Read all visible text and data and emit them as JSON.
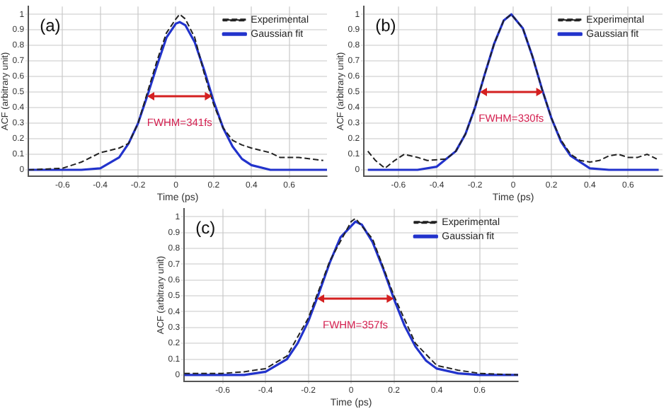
{
  "chart_data": [
    {
      "type": "line",
      "xlabel": "Time (ps)",
      "ylabel": "ACF (arbitrary unit)",
      "annotations": [
        "(a)",
        "FWHM=341fs"
      ],
      "xlim": [
        -0.78,
        0.8
      ],
      "ylim": [
        -0.04,
        1.05
      ],
      "xticks": [
        -0.6,
        -0.4,
        -0.2,
        0,
        0.2,
        0.4,
        0.6
      ],
      "yticks": [
        0,
        0.1,
        0.2,
        0.3,
        0.4,
        0.5,
        0.6,
        0.7,
        0.8,
        0.9,
        1
      ],
      "grid": true,
      "legend": "top right",
      "marker": "none",
      "series": [
        {
          "name": "Experimental",
          "color": "#222222",
          "line_style": "dashed",
          "x": [
            -0.78,
            -0.6,
            -0.5,
            -0.4,
            -0.3,
            -0.25,
            -0.2,
            -0.15,
            -0.1,
            -0.05,
            0,
            0.02,
            0.05,
            0.1,
            0.15,
            0.2,
            0.25,
            0.3,
            0.35,
            0.4,
            0.5,
            0.55,
            0.65,
            0.78
          ],
          "values": [
            0,
            0.01,
            0.05,
            0.11,
            0.14,
            0.17,
            0.3,
            0.5,
            0.7,
            0.88,
            0.97,
            1.0,
            0.97,
            0.85,
            0.62,
            0.42,
            0.27,
            0.19,
            0.16,
            0.14,
            0.11,
            0.08,
            0.08,
            0.06
          ]
        },
        {
          "name": "Gaussian fit",
          "color": "#2233cc",
          "line_style": "solid",
          "x": [
            -0.78,
            -0.5,
            -0.4,
            -0.3,
            -0.25,
            -0.2,
            -0.15,
            -0.1,
            -0.05,
            0,
            0.02,
            0.05,
            0.1,
            0.15,
            0.2,
            0.25,
            0.3,
            0.35,
            0.4,
            0.5,
            0.8
          ],
          "values": [
            0,
            0,
            0.01,
            0.08,
            0.17,
            0.3,
            0.48,
            0.67,
            0.85,
            0.94,
            0.95,
            0.93,
            0.82,
            0.64,
            0.44,
            0.27,
            0.15,
            0.07,
            0.03,
            0,
            0
          ]
        }
      ]
    },
    {
      "type": "line",
      "xlabel": "Time (ps)",
      "ylabel": "ACF (arbitrary unit)",
      "annotations": [
        "(b)",
        "FWHM=330fs"
      ],
      "xlim": [
        -0.78,
        0.78
      ],
      "ylim": [
        -0.04,
        1.05
      ],
      "xticks": [
        -0.6,
        -0.4,
        -0.2,
        0,
        0.2,
        0.4,
        0.6
      ],
      "yticks": [
        0,
        0.1,
        0.2,
        0.3,
        0.4,
        0.5,
        0.6,
        0.7,
        0.8,
        0.9,
        1
      ],
      "grid": true,
      "legend": "top right",
      "marker": "none",
      "series": [
        {
          "name": "Experimental",
          "color": "#222222",
          "line_style": "dashed",
          "x": [
            -0.76,
            -0.72,
            -0.67,
            -0.62,
            -0.57,
            -0.5,
            -0.45,
            -0.35,
            -0.3,
            -0.25,
            -0.2,
            -0.15,
            -0.1,
            -0.05,
            -0.01,
            0.05,
            0.1,
            0.15,
            0.2,
            0.25,
            0.3,
            0.35,
            0.4,
            0.45,
            0.5,
            0.55,
            0.6,
            0.65,
            0.7,
            0.75
          ],
          "values": [
            0.12,
            0.06,
            0.01,
            0.06,
            0.1,
            0.08,
            0.06,
            0.07,
            0.12,
            0.23,
            0.4,
            0.61,
            0.81,
            0.96,
            1.0,
            0.91,
            0.73,
            0.52,
            0.33,
            0.19,
            0.1,
            0.06,
            0.05,
            0.06,
            0.09,
            0.1,
            0.08,
            0.08,
            0.1,
            0.07
          ]
        },
        {
          "name": "Gaussian fit",
          "color": "#2233cc",
          "line_style": "solid",
          "x": [
            -0.76,
            -0.5,
            -0.4,
            -0.3,
            -0.25,
            -0.2,
            -0.15,
            -0.1,
            -0.05,
            -0.01,
            0.05,
            0.1,
            0.15,
            0.2,
            0.25,
            0.3,
            0.4,
            0.5,
            0.76
          ],
          "values": [
            0,
            0,
            0.02,
            0.12,
            0.23,
            0.4,
            0.61,
            0.81,
            0.96,
            1.0,
            0.91,
            0.73,
            0.52,
            0.33,
            0.18,
            0.09,
            0.01,
            0,
            0
          ]
        }
      ]
    },
    {
      "type": "line",
      "xlabel": "Time (ps)",
      "ylabel": "ACF (arbitrary unit)",
      "annotations": [
        "(c)",
        "FWHM=357fs"
      ],
      "xlim": [
        -0.78,
        0.78
      ],
      "ylim": [
        -0.04,
        1.05
      ],
      "xticks": [
        -0.6,
        -0.4,
        -0.2,
        0,
        0.2,
        0.4,
        0.6
      ],
      "yticks": [
        0,
        0.1,
        0.2,
        0.3,
        0.4,
        0.5,
        0.6,
        0.7,
        0.8,
        0.9,
        1
      ],
      "grid": true,
      "legend": "top right",
      "marker": "none",
      "series": [
        {
          "name": "Experimental",
          "color": "#222222",
          "line_style": "dashed",
          "x": [
            -0.78,
            -0.6,
            -0.5,
            -0.4,
            -0.3,
            -0.2,
            -0.1,
            0,
            0.02,
            0.1,
            0.2,
            0.3,
            0.4,
            0.5,
            0.6,
            0.78
          ],
          "values": [
            0.01,
            0.01,
            0.02,
            0.04,
            0.12,
            0.36,
            0.72,
            0.97,
            0.99,
            0.86,
            0.5,
            0.2,
            0.06,
            0.03,
            0.01,
            0
          ]
        },
        {
          "name": "Gaussian fit",
          "color": "#2233cc",
          "line_style": "solid",
          "x": [
            -0.78,
            -0.6,
            -0.5,
            -0.4,
            -0.3,
            -0.25,
            -0.2,
            -0.15,
            -0.1,
            -0.05,
            0.02,
            0.05,
            0.1,
            0.15,
            0.2,
            0.25,
            0.3,
            0.35,
            0.4,
            0.5,
            0.6,
            0.78
          ],
          "values": [
            0,
            0,
            0,
            0.02,
            0.1,
            0.2,
            0.34,
            0.52,
            0.71,
            0.87,
            0.97,
            0.95,
            0.84,
            0.67,
            0.48,
            0.31,
            0.18,
            0.09,
            0.04,
            0.01,
            0,
            0
          ]
        }
      ]
    }
  ]
}
